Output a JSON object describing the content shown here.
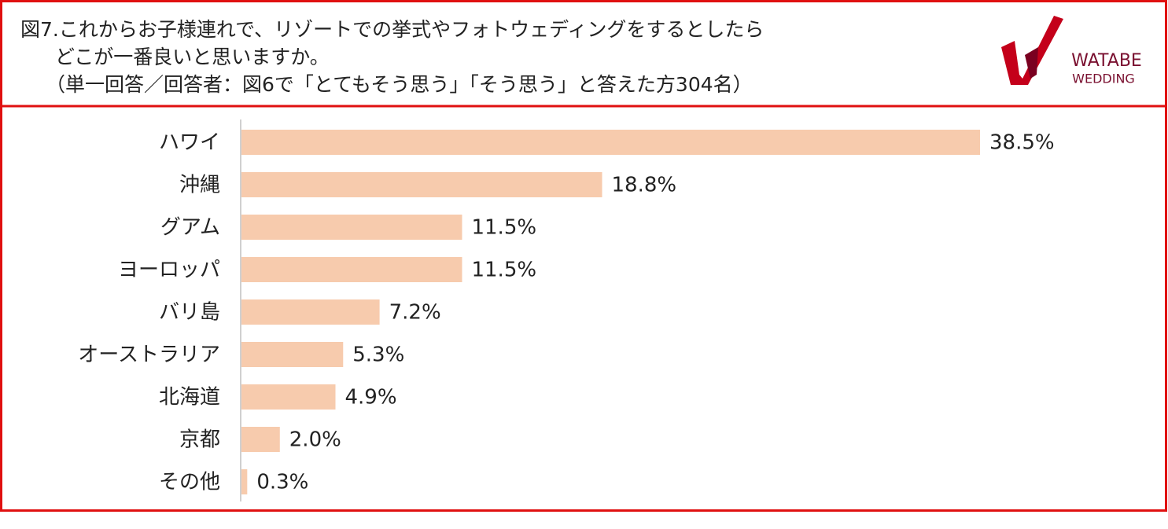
{
  "chart_data": {
    "type": "bar",
    "orientation": "horizontal",
    "title": "図7.これからお子様連れで、リゾートでの挙式やフォトウェディングをするとしたら\nどこが一番良いと思いますか。",
    "subtitle": "（単一回答／回答者：図6で「とてもそう思う」「そう思う」と答えた方304名）",
    "categories": [
      "ハワイ",
      "沖縄",
      "グアム",
      "ヨーロッパ",
      "バリ島",
      "オーストラリア",
      "北海道",
      "京都",
      "その他"
    ],
    "values": [
      38.5,
      18.8,
      11.5,
      11.5,
      7.2,
      5.3,
      4.9,
      2.0,
      0.3
    ],
    "value_labels": [
      "38.5%",
      "18.8%",
      "11.5%",
      "11.5%",
      "7.2%",
      "5.3%",
      "4.9%",
      "2.0%",
      "0.3%"
    ],
    "color": "#f7cbad"
  },
  "logo": {
    "line1": "WATABE",
    "line2": "WEDDING"
  }
}
